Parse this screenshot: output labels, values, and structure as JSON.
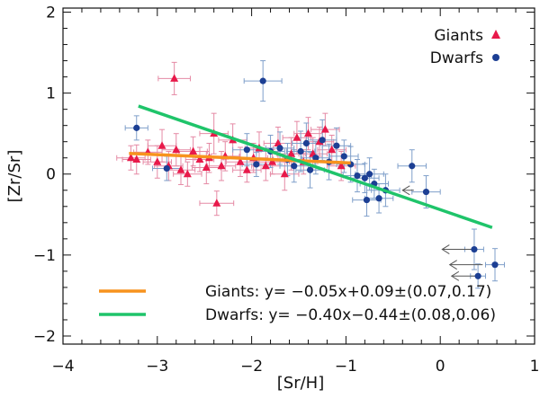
{
  "chart_data": {
    "type": "scatter",
    "title": "",
    "xlabel": "[Sr/H]",
    "ylabel": "[Zr/Sr]",
    "xlim": [
      -4,
      1
    ],
    "ylim": [
      -2.1,
      2.05
    ],
    "xticks": [
      -4,
      -3,
      -2,
      -1,
      0,
      1
    ],
    "yticks": [
      -2,
      -1,
      0,
      1,
      2
    ],
    "xtick_labels": [
      "−4",
      "−3",
      "−2",
      "−1",
      "0",
      "1"
    ],
    "ytick_labels": [
      "−2",
      "−1",
      "0",
      "1",
      "2"
    ],
    "colors": {
      "giants": "#e8194a",
      "giants_err": "#e58aa5",
      "dwarfs": "#1c3f94",
      "dwarfs_err": "#7f9fca",
      "giants_fit": "#f7931e",
      "dwarfs_fit": "#1fc46a",
      "axis": "#111111"
    },
    "legend": [
      {
        "name": "Giants",
        "marker": "triangle",
        "color": "#e8194a"
      },
      {
        "name": "Dwarfs",
        "marker": "circle",
        "color": "#1c3f94"
      }
    ],
    "fits": [
      {
        "name": "Giants",
        "text": "Giants: y= −0.05x+0.09±(0.07,0.17)",
        "slope": -0.05,
        "intercept": 0.09,
        "x_range": [
          -3.3,
          -0.95
        ],
        "color": "#f7931e"
      },
      {
        "name": "Dwarfs",
        "text": "Dwarfs: y= −0.40x−0.44±(0.08,0.06)",
        "slope": -0.4,
        "intercept": -0.44,
        "x_range": [
          -3.2,
          0.55
        ],
        "color": "#1fc46a"
      }
    ],
    "series": [
      {
        "name": "Giants",
        "marker": "triangle",
        "points": [
          {
            "x": -3.28,
            "y": 0.2,
            "xerr": 0.15,
            "yerr": 0.15
          },
          {
            "x": -3.22,
            "y": 0.18,
            "xerr": 0.15,
            "yerr": 0.18
          },
          {
            "x": -3.1,
            "y": 0.27,
            "xerr": 0.15,
            "yerr": 0.15
          },
          {
            "x": -3.0,
            "y": 0.15,
            "xerr": 0.15,
            "yerr": 0.2
          },
          {
            "x": -2.95,
            "y": 0.35,
            "xerr": 0.15,
            "yerr": 0.2
          },
          {
            "x": -2.88,
            "y": 0.1,
            "xerr": 0.15,
            "yerr": 0.18
          },
          {
            "x": -2.82,
            "y": 1.18,
            "xerr": 0.17,
            "yerr": 0.2
          },
          {
            "x": -2.8,
            "y": 0.3,
            "xerr": 0.15,
            "yerr": 0.2
          },
          {
            "x": -2.75,
            "y": 0.05,
            "xerr": 0.15,
            "yerr": 0.18
          },
          {
            "x": -2.68,
            "y": 0.0,
            "xerr": 0.15,
            "yerr": 0.15
          },
          {
            "x": -2.62,
            "y": 0.28,
            "xerr": 0.15,
            "yerr": 0.18
          },
          {
            "x": -2.55,
            "y": 0.18,
            "xerr": 0.15,
            "yerr": 0.15
          },
          {
            "x": -2.48,
            "y": 0.08,
            "xerr": 0.15,
            "yerr": 0.2
          },
          {
            "x": -2.45,
            "y": 0.2,
            "xerr": 0.15,
            "yerr": 0.18
          },
          {
            "x": -2.4,
            "y": 0.5,
            "xerr": 0.15,
            "yerr": 0.25
          },
          {
            "x": -2.37,
            "y": -0.36,
            "xerr": 0.18,
            "yerr": 0.15
          },
          {
            "x": -2.32,
            "y": 0.1,
            "xerr": 0.15,
            "yerr": 0.18
          },
          {
            "x": -2.28,
            "y": 0.22,
            "xerr": 0.15,
            "yerr": 0.18
          },
          {
            "x": -2.2,
            "y": 0.42,
            "xerr": 0.15,
            "yerr": 0.2
          },
          {
            "x": -2.12,
            "y": 0.15,
            "xerr": 0.15,
            "yerr": 0.18
          },
          {
            "x": -2.05,
            "y": 0.05,
            "xerr": 0.15,
            "yerr": 0.15
          },
          {
            "x": -1.98,
            "y": 0.2,
            "xerr": 0.15,
            "yerr": 0.18
          },
          {
            "x": -1.92,
            "y": 0.32,
            "xerr": 0.15,
            "yerr": 0.2
          },
          {
            "x": -1.85,
            "y": 0.1,
            "xerr": 0.15,
            "yerr": 0.18
          },
          {
            "x": -1.78,
            "y": 0.15,
            "xerr": 0.15,
            "yerr": 0.15
          },
          {
            "x": -1.72,
            "y": 0.38,
            "xerr": 0.15,
            "yerr": 0.2
          },
          {
            "x": -1.65,
            "y": 0.0,
            "xerr": 0.15,
            "yerr": 0.2
          },
          {
            "x": -1.58,
            "y": 0.25,
            "xerr": 0.15,
            "yerr": 0.2
          },
          {
            "x": -1.52,
            "y": 0.45,
            "xerr": 0.15,
            "yerr": 0.2
          },
          {
            "x": -1.45,
            "y": 0.15,
            "xerr": 0.15,
            "yerr": 0.15
          },
          {
            "x": -1.4,
            "y": 0.5,
            "xerr": 0.15,
            "yerr": 0.2
          },
          {
            "x": -1.35,
            "y": 0.25,
            "xerr": 0.15,
            "yerr": 0.2
          },
          {
            "x": -1.28,
            "y": 0.4,
            "xerr": 0.15,
            "yerr": 0.18
          },
          {
            "x": -1.22,
            "y": 0.55,
            "xerr": 0.15,
            "yerr": 0.2
          },
          {
            "x": -1.15,
            "y": 0.3,
            "xerr": 0.15,
            "yerr": 0.18
          },
          {
            "x": -1.05,
            "y": 0.1,
            "xerr": 0.15,
            "yerr": 0.18
          }
        ]
      },
      {
        "name": "Dwarfs",
        "marker": "circle",
        "points": [
          {
            "x": -3.22,
            "y": 0.57,
            "xerr": 0.12,
            "yerr": 0.15
          },
          {
            "x": -2.9,
            "y": 0.07,
            "xerr": 0.15,
            "yerr": 0.15
          },
          {
            "x": -1.88,
            "y": 1.15,
            "xerr": 0.2,
            "yerr": 0.25
          },
          {
            "x": -2.05,
            "y": 0.3,
            "xerr": 0.15,
            "yerr": 0.2
          },
          {
            "x": -1.95,
            "y": 0.12,
            "xerr": 0.15,
            "yerr": 0.15
          },
          {
            "x": -1.8,
            "y": 0.28,
            "xerr": 0.15,
            "yerr": 0.2
          },
          {
            "x": -1.7,
            "y": 0.32,
            "xerr": 0.15,
            "yerr": 0.2
          },
          {
            "x": -1.62,
            "y": 0.18,
            "xerr": 0.15,
            "yerr": 0.2
          },
          {
            "x": -1.55,
            "y": 0.1,
            "xerr": 0.15,
            "yerr": 0.2
          },
          {
            "x": -1.48,
            "y": 0.28,
            "xerr": 0.15,
            "yerr": 0.25
          },
          {
            "x": -1.42,
            "y": 0.38,
            "xerr": 0.15,
            "yerr": 0.25
          },
          {
            "x": -1.38,
            "y": 0.05,
            "xerr": 0.15,
            "yerr": 0.22
          },
          {
            "x": -1.32,
            "y": 0.2,
            "xerr": 0.15,
            "yerr": 0.2
          },
          {
            "x": -1.25,
            "y": 0.42,
            "xerr": 0.15,
            "yerr": 0.25
          },
          {
            "x": -1.18,
            "y": 0.15,
            "xerr": 0.15,
            "yerr": 0.22
          },
          {
            "x": -1.1,
            "y": 0.35,
            "xerr": 0.15,
            "yerr": 0.22
          },
          {
            "x": -1.02,
            "y": 0.22,
            "xerr": 0.15,
            "yerr": 0.2
          },
          {
            "x": -0.95,
            "y": 0.12,
            "xerr": 0.15,
            "yerr": 0.22
          },
          {
            "x": -0.88,
            "y": -0.02,
            "xerr": 0.15,
            "yerr": 0.2
          },
          {
            "x": -0.8,
            "y": -0.05,
            "xerr": 0.15,
            "yerr": 0.18
          },
          {
            "x": -0.75,
            "y": 0.0,
            "xerr": 0.15,
            "yerr": 0.2
          },
          {
            "x": -0.7,
            "y": -0.12,
            "xerr": 0.15,
            "yerr": 0.18
          },
          {
            "x": -0.78,
            "y": -0.32,
            "xerr": 0.15,
            "yerr": 0.2
          },
          {
            "x": -0.65,
            "y": -0.3,
            "xerr": 0.15,
            "yerr": 0.18
          },
          {
            "x": -0.58,
            "y": -0.2,
            "xerr": 0.15,
            "yerr": 0.2
          },
          {
            "x": -0.3,
            "y": 0.1,
            "xerr": 0.15,
            "yerr": 0.2
          },
          {
            "x": -0.15,
            "y": -0.22,
            "xerr": 0.15,
            "yerr": 0.2
          },
          {
            "x": 0.36,
            "y": -0.93,
            "xerr": 0.1,
            "yerr": 0.25
          },
          {
            "x": 0.58,
            "y": -1.12,
            "xerr": 0.1,
            "yerr": 0.2
          },
          {
            "x": 0.4,
            "y": -1.26,
            "xerr": 0.08,
            "yerr": 0.15
          }
        ]
      }
    ],
    "upper_limits": [
      {
        "x": -0.28,
        "y": -0.2,
        "x_end": -0.4
      },
      {
        "x": 0.36,
        "y": -0.93,
        "x_end": 0.02
      },
      {
        "x": 0.45,
        "y": -1.12,
        "x_end": 0.1
      },
      {
        "x": 0.42,
        "y": -1.26,
        "x_end": 0.12
      }
    ]
  }
}
